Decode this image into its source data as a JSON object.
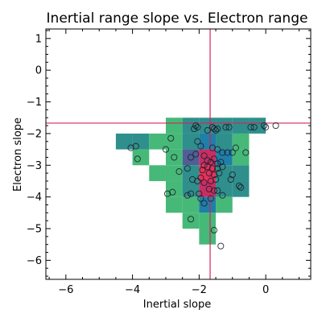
{
  "chart_data": {
    "type": "heatmap",
    "title": "Inertial range slope vs. Electron range",
    "xlabel": "Inertial slope",
    "ylabel": "Electron slope",
    "xlim": [
      -6.6,
      1.35
    ],
    "ylim": [
      -6.6,
      1.3
    ],
    "xticks": [
      -6,
      -4,
      -2,
      0
    ],
    "yticks": [
      -6,
      -5,
      -4,
      -3,
      -2,
      -1,
      0,
      1
    ],
    "xtick_labels": [
      "−6",
      "−4",
      "−2",
      "0"
    ],
    "ytick_labels": [
      "−6",
      "−5",
      "−4",
      "−3",
      "−2",
      "−1",
      "0",
      "1"
    ],
    "reference_lines": {
      "x": -1.67,
      "y": -1.67,
      "color": "#d6245a"
    },
    "colormap": {
      "1": "#46b978",
      "2": "#2e8f8c",
      "3": "#1f7fa8",
      "4": "#4f5f96",
      "5": "#c62f63",
      "6": "#e8315a"
    },
    "bin_size": [
      0.5,
      0.5
    ],
    "bins": [
      {
        "x": -2.75,
        "y": -1.75,
        "c": 1
      },
      {
        "x": -2.25,
        "y": -1.75,
        "c": 2
      },
      {
        "x": -1.75,
        "y": -1.75,
        "c": 2
      },
      {
        "x": -1.25,
        "y": -1.75,
        "c": 2
      },
      {
        "x": -0.75,
        "y": -1.75,
        "c": 2
      },
      {
        "x": -0.25,
        "y": -1.75,
        "c": 2
      },
      {
        "x": -4.25,
        "y": -2.25,
        "c": 2
      },
      {
        "x": -3.75,
        "y": -2.25,
        "c": 2
      },
      {
        "x": -3.25,
        "y": -2.25,
        "c": 1
      },
      {
        "x": -2.75,
        "y": -2.25,
        "c": 1
      },
      {
        "x": -2.25,
        "y": -2.25,
        "c": 2
      },
      {
        "x": -1.75,
        "y": -2.25,
        "c": 3
      },
      {
        "x": -1.25,
        "y": -2.25,
        "c": 2
      },
      {
        "x": -0.75,
        "y": -2.25,
        "c": 1
      },
      {
        "x": -3.75,
        "y": -2.75,
        "c": 1
      },
      {
        "x": -2.75,
        "y": -2.75,
        "c": 1
      },
      {
        "x": -2.25,
        "y": -2.75,
        "c": 4
      },
      {
        "x": -1.75,
        "y": -2.75,
        "c": 5
      },
      {
        "x": -1.25,
        "y": -2.75,
        "c": 3
      },
      {
        "x": -0.75,
        "y": -2.75,
        "c": 1
      },
      {
        "x": -3.25,
        "y": -3.25,
        "c": 1
      },
      {
        "x": -2.75,
        "y": -3.25,
        "c": 1
      },
      {
        "x": -2.25,
        "y": -3.25,
        "c": 2
      },
      {
        "x": -1.75,
        "y": -3.25,
        "c": 6
      },
      {
        "x": -1.25,
        "y": -3.25,
        "c": 2
      },
      {
        "x": -0.75,
        "y": -3.25,
        "c": 2
      },
      {
        "x": -2.75,
        "y": -3.75,
        "c": 1
      },
      {
        "x": -2.25,
        "y": -3.75,
        "c": 2
      },
      {
        "x": -1.75,
        "y": -3.75,
        "c": 5
      },
      {
        "x": -1.25,
        "y": -3.75,
        "c": 2
      },
      {
        "x": -0.75,
        "y": -3.75,
        "c": 2
      },
      {
        "x": -2.75,
        "y": -4.25,
        "c": 1
      },
      {
        "x": -2.25,
        "y": -4.25,
        "c": 1
      },
      {
        "x": -1.75,
        "y": -4.25,
        "c": 3
      },
      {
        "x": -1.25,
        "y": -4.25,
        "c": 1
      },
      {
        "x": -2.25,
        "y": -4.75,
        "c": 1
      },
      {
        "x": -1.75,
        "y": -4.75,
        "c": 1
      },
      {
        "x": -1.75,
        "y": -5.25,
        "c": 1
      }
    ],
    "points": [
      {
        "x": 0.3,
        "y": -1.75
      },
      {
        "x": 0.0,
        "y": -1.8
      },
      {
        "x": -0.05,
        "y": -1.75
      },
      {
        "x": -0.45,
        "y": -1.8
      },
      {
        "x": -0.35,
        "y": -1.8
      },
      {
        "x": -0.6,
        "y": -2.6
      },
      {
        "x": -1.1,
        "y": -1.8
      },
      {
        "x": -1.2,
        "y": -1.8
      },
      {
        "x": -1.15,
        "y": -2.6
      },
      {
        "x": -1.6,
        "y": -1.8
      },
      {
        "x": -1.55,
        "y": -1.85
      },
      {
        "x": -1.45,
        "y": -1.85
      },
      {
        "x": -1.5,
        "y": -1.9
      },
      {
        "x": -1.75,
        "y": -1.9
      },
      {
        "x": -2.1,
        "y": -1.75
      },
      {
        "x": -2.05,
        "y": -1.8
      },
      {
        "x": -2.15,
        "y": -1.85
      },
      {
        "x": -2.05,
        "y": -2.25
      },
      {
        "x": -1.95,
        "y": -2.4
      },
      {
        "x": -1.6,
        "y": -2.45
      },
      {
        "x": -1.45,
        "y": -2.5
      },
      {
        "x": -1.3,
        "y": -2.6
      },
      {
        "x": -1.0,
        "y": -2.6
      },
      {
        "x": -0.9,
        "y": -2.45
      },
      {
        "x": -3.9,
        "y": -2.4
      },
      {
        "x": -4.05,
        "y": -2.45
      },
      {
        "x": -3.85,
        "y": -2.8
      },
      {
        "x": -2.85,
        "y": -2.15
      },
      {
        "x": -3.0,
        "y": -2.5
      },
      {
        "x": -2.75,
        "y": -2.75
      },
      {
        "x": -2.25,
        "y": -2.75
      },
      {
        "x": -2.1,
        "y": -2.65
      },
      {
        "x": -1.85,
        "y": -2.7
      },
      {
        "x": -1.75,
        "y": -2.85
      },
      {
        "x": -1.65,
        "y": -2.9
      },
      {
        "x": -1.55,
        "y": -2.8
      },
      {
        "x": -1.45,
        "y": -2.95
      },
      {
        "x": -1.35,
        "y": -2.9
      },
      {
        "x": -1.3,
        "y": -3.05
      },
      {
        "x": -1.45,
        "y": -3.1
      },
      {
        "x": -1.6,
        "y": -3.1
      },
      {
        "x": -1.75,
        "y": -3.05
      },
      {
        "x": -1.85,
        "y": -3.0
      },
      {
        "x": -1.9,
        "y": -3.15
      },
      {
        "x": -1.7,
        "y": -3.25
      },
      {
        "x": -1.55,
        "y": -3.3
      },
      {
        "x": -1.4,
        "y": -3.25
      },
      {
        "x": -1.5,
        "y": -3.45
      },
      {
        "x": -1.65,
        "y": -3.5
      },
      {
        "x": -1.85,
        "y": -3.55
      },
      {
        "x": -1.95,
        "y": -3.4
      },
      {
        "x": -2.05,
        "y": -3.5
      },
      {
        "x": -2.2,
        "y": -3.45
      },
      {
        "x": -2.35,
        "y": -3.1
      },
      {
        "x": -2.6,
        "y": -3.2
      },
      {
        "x": -1.7,
        "y": -3.75
      },
      {
        "x": -1.55,
        "y": -3.8
      },
      {
        "x": -1.45,
        "y": -3.8
      },
      {
        "x": -1.0,
        "y": -3.3
      },
      {
        "x": -1.05,
        "y": -3.45
      },
      {
        "x": -0.8,
        "y": -3.65
      },
      {
        "x": -0.75,
        "y": -3.7
      },
      {
        "x": -2.25,
        "y": -3.9
      },
      {
        "x": -2.35,
        "y": -3.95
      },
      {
        "x": -2.8,
        "y": -3.85
      },
      {
        "x": -2.95,
        "y": -3.9
      },
      {
        "x": -2.0,
        "y": -3.9
      },
      {
        "x": -1.95,
        "y": -4.05
      },
      {
        "x": -1.65,
        "y": -4.05
      },
      {
        "x": -1.85,
        "y": -4.2
      },
      {
        "x": -1.3,
        "y": -3.95
      },
      {
        "x": -2.25,
        "y": -4.7
      },
      {
        "x": -1.55,
        "y": -5.05
      },
      {
        "x": -1.35,
        "y": -5.55
      }
    ],
    "point_color": "#1e1e2a"
  }
}
